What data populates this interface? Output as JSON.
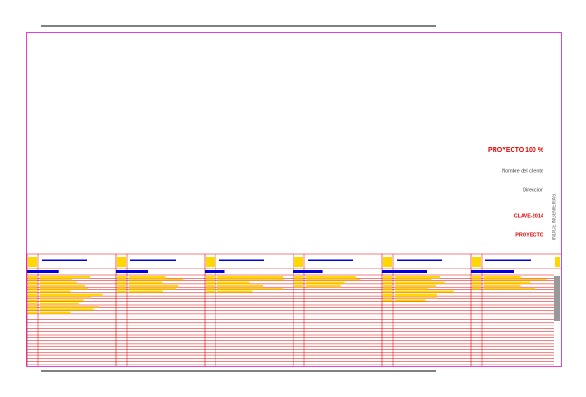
{
  "title_block": {
    "status": "PROYECTO 100 %",
    "client": "Nombre del cliente",
    "address": "Direccion",
    "code": "CLAVE-2014",
    "phase": "PROYECTO",
    "side_label": "INDICE INGENIERIAS"
  }
}
